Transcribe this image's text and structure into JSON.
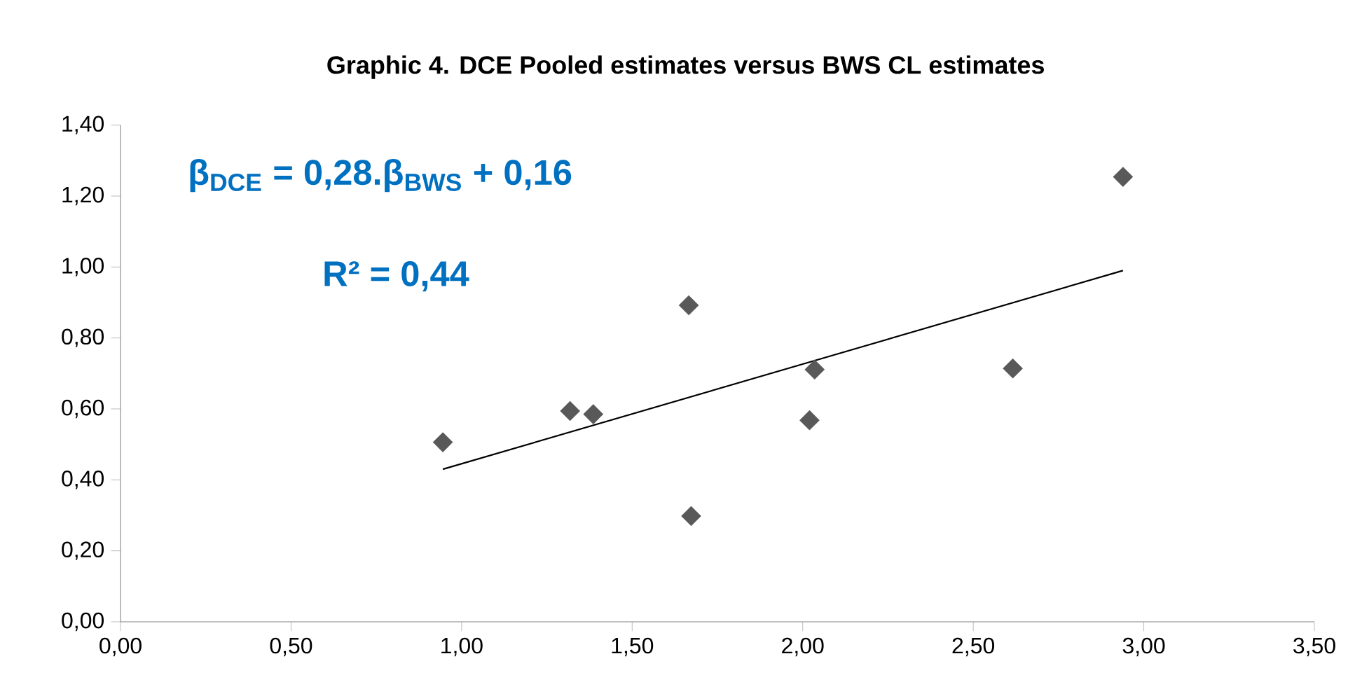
{
  "chart_data": {
    "type": "scatter",
    "title": "Graphic 4. DCE Pooled estimates versus BWS CL estimates",
    "annotations": [
      "β$_{DCE}$ = 0,28.β$_{BWS}$ + 0,16",
      "R² = 0,44"
    ],
    "marker": "diamond",
    "xlim": [
      0,
      3.5
    ],
    "xticks": [
      {
        "value": 0,
        "label": "0,00"
      },
      {
        "value": 0.5,
        "label": "0,50"
      },
      {
        "value": 1,
        "label": "1,00"
      },
      {
        "value": 1.5,
        "label": "1,50"
      },
      {
        "value": 2,
        "label": "2,00"
      },
      {
        "value": 2.5,
        "label": "2,50"
      },
      {
        "value": 3,
        "label": "3,00"
      },
      {
        "value": 3.5,
        "label": "3,50"
      }
    ],
    "ylim": [
      0,
      1.4
    ],
    "yticks": [
      {
        "value": 0,
        "label": "0,00"
      },
      {
        "value": 0.2,
        "label": "0,20"
      },
      {
        "value": 0.4,
        "label": "0,40"
      },
      {
        "value": 0.6,
        "label": "0,60"
      },
      {
        "value": 0.8,
        "label": "0,80"
      },
      {
        "value": 1,
        "label": "1,00"
      },
      {
        "value": 1.2,
        "label": "1,20"
      },
      {
        "value": 1.4,
        "label": "1,40"
      }
    ],
    "series": [
      {
        "color": "#595959",
        "x": [
          0.945,
          1.318,
          1.386,
          1.666,
          1.673,
          2.035,
          2.02,
          2.616,
          2.939
        ],
        "values": [
          0.506,
          0.594,
          0.585,
          0.892,
          0.298,
          0.711,
          0.568,
          0.714,
          1.254
        ]
      },
      {
        "type": "line",
        "color": "#000000",
        "marker": "none",
        "x": [
          0.945,
          2.939
        ],
        "values": [
          0.43,
          0.99
        ]
      }
    ]
  }
}
